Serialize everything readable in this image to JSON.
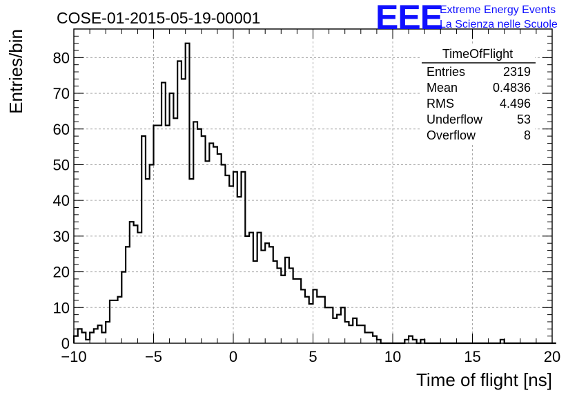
{
  "header": {
    "run_title": "COSE-01-2015-05-19-00001",
    "logo_text": "EEE",
    "logo_line1": "Extreme Energy Events",
    "logo_line2": "La Scienza nelle Scuole"
  },
  "stats": {
    "title": "TimeOfFlight",
    "rows": [
      {
        "label": "Entries",
        "value": "2319"
      },
      {
        "label": "Mean",
        "value": "0.4836"
      },
      {
        "label": "RMS",
        "value": "4.496"
      },
      {
        "label": "Underflow",
        "value": "53"
      },
      {
        "label": "Overflow",
        "value": "8"
      }
    ]
  },
  "chart_data": {
    "type": "bar",
    "style": "step-histogram",
    "title": "COSE-01-2015-05-19-00001",
    "xlabel": "Time of flight [ns]",
    "ylabel": "Entries/bin",
    "xlim": [
      -10,
      20
    ],
    "ylim": [
      0,
      88
    ],
    "bin_width": 0.25,
    "x_ticks": [
      -10,
      -5,
      0,
      5,
      10,
      15,
      20
    ],
    "x_tick_labels": [
      "−10",
      "−5",
      "0",
      "5",
      "10",
      "15",
      "20"
    ],
    "y_ticks": [
      0,
      10,
      20,
      30,
      40,
      50,
      60,
      70,
      80
    ],
    "y_tick_labels": [
      "0",
      "10",
      "20",
      "30",
      "40",
      "50",
      "60",
      "70",
      "80"
    ],
    "grid": true,
    "line_color": "#000000",
    "values": [
      2,
      4,
      3,
      1,
      3,
      4,
      5,
      3,
      6,
      12,
      12,
      13,
      20,
      27,
      34,
      33,
      31,
      58,
      46,
      50,
      61,
      61,
      73,
      61,
      70,
      63,
      79,
      74,
      84,
      46,
      62,
      60,
      58,
      51,
      56,
      55,
      53,
      50,
      47,
      44,
      48,
      41,
      48,
      30,
      31,
      23,
      31,
      26,
      28,
      27,
      23,
      21,
      19,
      24,
      21,
      18,
      18,
      15,
      13,
      11,
      15,
      13,
      13,
      10,
      10,
      7,
      8,
      10,
      6,
      5,
      7,
      5,
      5,
      3,
      3,
      2,
      1,
      0,
      0,
      0,
      0,
      0,
      0,
      1,
      2,
      1,
      0,
      1,
      0,
      0,
      0,
      0,
      0,
      0,
      0,
      0,
      0,
      0,
      0,
      0,
      0,
      0,
      0,
      0,
      0,
      0,
      0,
      1,
      0,
      0,
      0,
      0,
      0,
      0,
      0,
      0,
      0,
      0,
      0,
      0,
      0
    ]
  }
}
